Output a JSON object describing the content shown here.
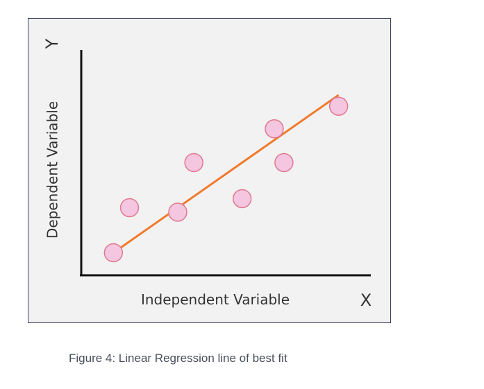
{
  "figure": {
    "y_axis_letter": "Y",
    "y_axis_label": "Dependent Variable",
    "x_axis_label": "Independent Variable",
    "x_axis_letter": "X",
    "caption": "Figure 4: Linear Regression line of best fit"
  },
  "colors": {
    "background": "#f2f2f2",
    "frame_border": "#3b3f5c",
    "axis": "#111111",
    "point_fill": "#f5c6df",
    "point_stroke": "#e07a8f",
    "fit_line": "#f07a2c",
    "label_text": "#333333",
    "caption_text": "#4a4f5c"
  },
  "chart_data": {
    "type": "scatter",
    "points": [
      {
        "x": 1.0,
        "y": 1.0
      },
      {
        "x": 1.5,
        "y": 3.0
      },
      {
        "x": 3.0,
        "y": 2.8
      },
      {
        "x": 3.5,
        "y": 5.0
      },
      {
        "x": 5.0,
        "y": 3.4
      },
      {
        "x": 6.0,
        "y": 6.5
      },
      {
        "x": 6.3,
        "y": 5.0
      },
      {
        "x": 8.0,
        "y": 7.5
      }
    ],
    "fit_line": {
      "x": [
        1.0,
        8.0
      ],
      "y": [
        1.0,
        8.0
      ]
    },
    "xlim": [
      0,
      9
    ],
    "ylim": [
      0,
      10
    ],
    "grid": false
  }
}
